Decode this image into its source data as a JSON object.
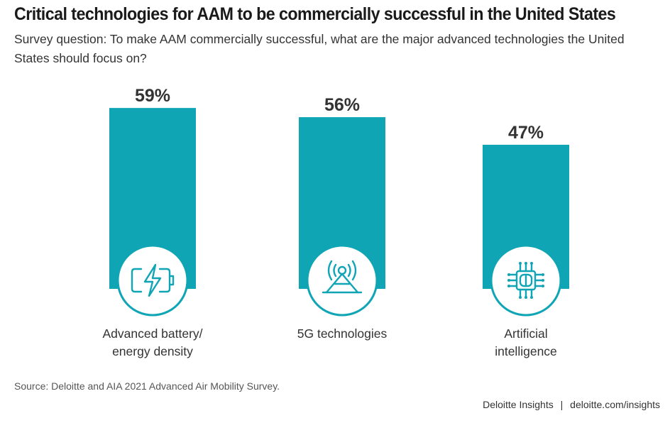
{
  "title": "Critical technologies for AAM to be commercially successful in the United States",
  "subtitle": "Survey question: To make AAM commercially successful, what are the major advanced technologies the United States should focus on?",
  "source": "Source: Deloitte and AIA 2021 Advanced Air Mobility Survey.",
  "credit": {
    "brand": "Deloitte Insights",
    "separator": "|",
    "url": "deloitte.com/insights"
  },
  "colors": {
    "bar": "#0FA5B5",
    "icon_stroke": "#0FA5B5",
    "icon_circle_fill": "#ffffff",
    "text": "#333333"
  },
  "chart_data": {
    "type": "bar",
    "categories": [
      "Advanced battery/ energy density",
      "5G technologies",
      "Artificial intelligence"
    ],
    "category_label_lines": [
      [
        "Advanced battery/",
        "energy density"
      ],
      [
        "5G technologies"
      ],
      [
        "Artificial",
        "intelligence"
      ]
    ],
    "values": [
      59,
      56,
      47
    ],
    "data_labels": [
      "59%",
      "56%",
      "47%"
    ],
    "icons": [
      "battery-charging-icon",
      "5g-antenna-icon",
      "ai-chip-icon"
    ],
    "unit": "%",
    "ylim": [
      0,
      100
    ],
    "grid": false,
    "legend": false
  }
}
